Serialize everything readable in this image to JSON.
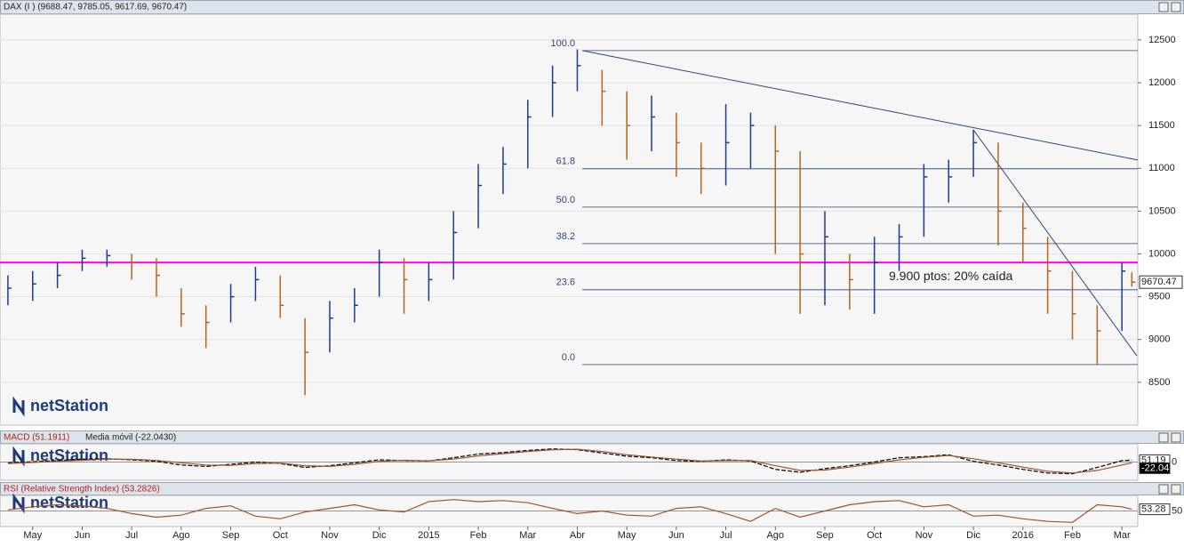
{
  "header": {
    "logo": "netStation"
  },
  "chart_data": [
    {
      "type": "ohlc",
      "title": "DAX (I ) (9688.47, 9785.05, 9617.69, 9670.47)",
      "x": [
        -0.5,
        0,
        0.5,
        1,
        1.5,
        2,
        2.5,
        3,
        3.5,
        4,
        4.5,
        5,
        5.5,
        6,
        6.5,
        7,
        7.5,
        8,
        8.5,
        9,
        9.5,
        10,
        10.5,
        11,
        11.5,
        12,
        12.5,
        13,
        13.5,
        14,
        14.5,
        15,
        15.5,
        16,
        16.5,
        17,
        17.5,
        18,
        18.5,
        19,
        19.5,
        20,
        20.5,
        21,
        21.5,
        22,
        22.2
      ],
      "high": [
        9750,
        9800,
        9900,
        10050,
        10050,
        10000,
        9950,
        9600,
        9400,
        9650,
        9850,
        9750,
        9250,
        9450,
        9600,
        10050,
        9950,
        9900,
        10500,
        11050,
        11250,
        11800,
        12200,
        12390,
        12150,
        11900,
        11850,
        11650,
        11300,
        11750,
        11650,
        11500,
        11200,
        10500,
        10000,
        10200,
        10350,
        11050,
        11100,
        11450,
        11300,
        10600,
        10200,
        9800,
        9400,
        9900,
        9785.05
      ],
      "low": [
        9400,
        9450,
        9600,
        9800,
        9850,
        9700,
        9500,
        9150,
        8900,
        9200,
        9450,
        9250,
        8350,
        8850,
        9200,
        9500,
        9300,
        9450,
        9700,
        10300,
        10700,
        11000,
        11600,
        11900,
        11500,
        11100,
        11200,
        10900,
        10700,
        10800,
        11000,
        10000,
        9300,
        9400,
        9350,
        9300,
        9800,
        10200,
        10600,
        10900,
        10100,
        9900,
        9300,
        9000,
        8700,
        9100,
        9617.69
      ],
      "close": [
        9600,
        9650,
        9750,
        9950,
        9980,
        9900,
        9750,
        9300,
        9200,
        9500,
        9700,
        9400,
        8850,
        9250,
        9400,
        9900,
        9700,
        9700,
        10250,
        10800,
        11050,
        11600,
        12000,
        12200,
        11900,
        11500,
        11600,
        11300,
        11000,
        11300,
        11500,
        11200,
        10000,
        10200,
        9700,
        9900,
        10200,
        10900,
        10900,
        11300,
        10500,
        10300,
        9800,
        9300,
        9100,
        9800,
        9670.47
      ],
      "up_color": "#1f3a93",
      "down_color": "#b5651d",
      "xlim": [
        -0.66,
        22.32
      ],
      "ylim": [
        8000,
        12800
      ],
      "yticks": [
        8500,
        9000,
        9500,
        10000,
        10500,
        11000,
        11500,
        12000,
        12500
      ],
      "xticks": [
        {
          "value": 0,
          "label": "May"
        },
        {
          "value": 1,
          "label": "Jun"
        },
        {
          "value": 2,
          "label": "Jul"
        },
        {
          "value": 3,
          "label": "Ago"
        },
        {
          "value": 4,
          "label": "Sep"
        },
        {
          "value": 5,
          "label": "Oct"
        },
        {
          "value": 6,
          "label": "Nov"
        },
        {
          "value": 7,
          "label": "Dic"
        },
        {
          "value": 8,
          "label": "2015"
        },
        {
          "value": 9,
          "label": "Feb"
        },
        {
          "value": 10,
          "label": "Mar"
        },
        {
          "value": 11,
          "label": "Abr"
        },
        {
          "value": 12,
          "label": "May"
        },
        {
          "value": 13,
          "label": "Jun"
        },
        {
          "value": 14,
          "label": "Jul"
        },
        {
          "value": 15,
          "label": "Ago"
        },
        {
          "value": 16,
          "label": "Sep"
        },
        {
          "value": 17,
          "label": "Oct"
        },
        {
          "value": 18,
          "label": "Nov"
        },
        {
          "value": 19,
          "label": "Dic"
        },
        {
          "value": 20,
          "label": "2016"
        },
        {
          "value": 21,
          "label": "Feb"
        },
        {
          "value": 22,
          "label": "Mar"
        }
      ],
      "hline": {
        "value": 9900,
        "color": "#ff00ff"
      },
      "fib_levels": [
        {
          "value": 12375,
          "label": "100.0"
        },
        {
          "value": 10994,
          "label": "61.8"
        },
        {
          "value": 10547,
          "label": "50.0"
        },
        {
          "value": 10121,
          "label": "38.2"
        },
        {
          "value": 9581,
          "label": "23.6"
        },
        {
          "value": 8708,
          "label": "0.0"
        }
      ],
      "fib_start": 11.1,
      "trendlines": [
        {
          "x": [
            11.1,
            22.32
          ],
          "y": [
            12375,
            11097
          ]
        },
        {
          "x": [
            19.0,
            22.3
          ],
          "y": [
            11450,
            8810
          ]
        }
      ],
      "annotation": "9.900 ptos: 20% caída",
      "last_label": {
        "value": 9670.47,
        "label": "9670.47"
      }
    },
    {
      "type": "line",
      "title": "MACD (51.1911)",
      "subtitle": "Media móvil (-22.0430)",
      "series": [
        {
          "name": "MACD",
          "color": "#000000",
          "values": [
            -20,
            10,
            40,
            80,
            90,
            60,
            20,
            -80,
            -120,
            -60,
            0,
            -40,
            -150,
            -100,
            -20,
            60,
            40,
            30,
            120,
            220,
            260,
            320,
            360,
            340,
            250,
            160,
            120,
            40,
            20,
            60,
            30,
            -200,
            -280,
            -180,
            -100,
            0,
            120,
            150,
            200,
            20,
            -80,
            -200,
            -300,
            -320,
            -150,
            40,
            51.19
          ]
        },
        {
          "name": "Media móvil",
          "color": "#a0522d",
          "values": [
            -40,
            -10,
            20,
            50,
            80,
            75,
            45,
            -20,
            -80,
            -90,
            -40,
            -30,
            -100,
            -120,
            -60,
            20,
            50,
            35,
            80,
            170,
            230,
            290,
            340,
            350,
            290,
            200,
            140,
            80,
            30,
            40,
            45,
            -100,
            -230,
            -220,
            -140,
            -40,
            60,
            130,
            180,
            90,
            -20,
            -140,
            -250,
            -300,
            -230,
            -80,
            -22.04
          ]
        }
      ],
      "ylim": [
        -500,
        500
      ],
      "yticks": [
        0
      ],
      "last_labels": [
        {
          "value": 51.19,
          "label": "51.19"
        },
        {
          "value": -22.04,
          "label": "-22.04"
        }
      ]
    },
    {
      "type": "line",
      "title": "RSI (Relative Strength Index) (53.2826)",
      "series": [
        {
          "name": "RSI",
          "color": "#a0522d",
          "values": [
            52,
            58,
            62,
            60,
            55,
            45,
            38,
            42,
            55,
            60,
            40,
            35,
            48,
            55,
            62,
            52,
            48,
            68,
            72,
            68,
            70,
            66,
            55,
            45,
            50,
            42,
            40,
            55,
            58,
            45,
            30,
            55,
            38,
            50,
            62,
            68,
            70,
            58,
            62,
            40,
            42,
            35,
            30,
            28,
            62,
            58,
            53.28
          ]
        }
      ],
      "ylim": [
        20,
        80
      ],
      "yticks": [
        50
      ],
      "last_labels": [
        {
          "value": 53.28,
          "label": "53.28"
        }
      ]
    }
  ]
}
